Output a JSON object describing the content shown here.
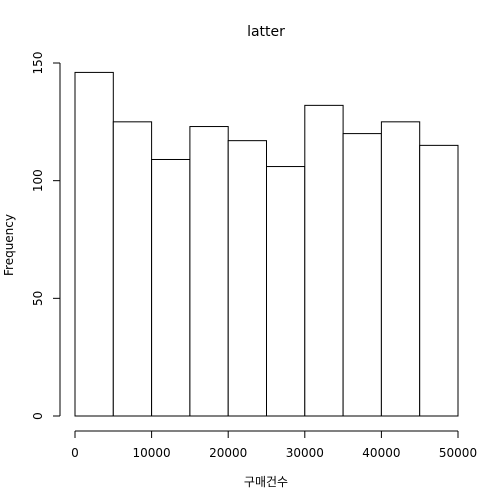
{
  "chart_data": {
    "type": "histogram",
    "title": "latter",
    "xlabel": "구매건수",
    "ylabel": "Frequency",
    "bins": [
      {
        "start": 0,
        "end": 5000,
        "count": 146
      },
      {
        "start": 5000,
        "end": 10000,
        "count": 125
      },
      {
        "start": 10000,
        "end": 15000,
        "count": 109
      },
      {
        "start": 15000,
        "end": 20000,
        "count": 123
      },
      {
        "start": 20000,
        "end": 25000,
        "count": 117
      },
      {
        "start": 25000,
        "end": 30000,
        "count": 106
      },
      {
        "start": 30000,
        "end": 35000,
        "count": 132
      },
      {
        "start": 35000,
        "end": 40000,
        "count": 120
      },
      {
        "start": 40000,
        "end": 45000,
        "count": 125
      },
      {
        "start": 45000,
        "end": 50000,
        "count": 115
      }
    ],
    "x_ticks": [
      0,
      10000,
      20000,
      30000,
      40000,
      50000
    ],
    "y_ticks": [
      0,
      50,
      100,
      150
    ],
    "xlim": [
      0,
      50000
    ],
    "ylim": [
      0,
      150
    ],
    "grid": false,
    "colors": {
      "bar_fill": "#ffffff",
      "bar_stroke": "#000000",
      "axis": "#000000"
    }
  }
}
